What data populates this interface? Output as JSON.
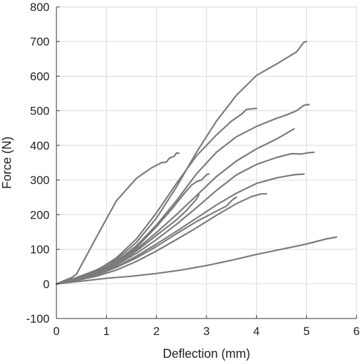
{
  "chart_data": {
    "type": "line",
    "title": "",
    "xlabel": "Deflection (mm)",
    "ylabel": "Force (N)",
    "xlim": [
      0,
      6
    ],
    "ylim": [
      -100,
      800
    ],
    "xticks": [
      0,
      1,
      2,
      3,
      4,
      5,
      6
    ],
    "yticks": [
      -100,
      0,
      100,
      200,
      300,
      400,
      500,
      600,
      700,
      800
    ],
    "grid": true,
    "legend": "none",
    "colors": {
      "line": "#7a7a7a",
      "grid": "#d9d9d9",
      "axis": "#333333"
    },
    "series": [
      {
        "points": [
          [
            0,
            0
          ],
          [
            0.3,
            18
          ],
          [
            0.4,
            28
          ],
          [
            0.8,
            135
          ],
          [
            1.2,
            240
          ],
          [
            1.6,
            305
          ],
          [
            1.9,
            335
          ],
          [
            2.1,
            350
          ],
          [
            2.2,
            352
          ],
          [
            2.25,
            362
          ],
          [
            2.3,
            366
          ],
          [
            2.35,
            368
          ],
          [
            2.4,
            378
          ],
          [
            2.45,
            377
          ]
        ]
      },
      {
        "points": [
          [
            0,
            0
          ],
          [
            0.4,
            18
          ],
          [
            0.8,
            40
          ],
          [
            1.2,
            70
          ],
          [
            1.6,
            120
          ],
          [
            2,
            190
          ],
          [
            2.4,
            280
          ],
          [
            2.8,
            380
          ],
          [
            3.2,
            470
          ],
          [
            3.6,
            545
          ],
          [
            4,
            602
          ],
          [
            4.4,
            635
          ],
          [
            4.8,
            670
          ],
          [
            4.95,
            698
          ],
          [
            5,
            700
          ]
        ]
      },
      {
        "points": [
          [
            0,
            0
          ],
          [
            0.4,
            15
          ],
          [
            0.8,
            38
          ],
          [
            1.2,
            75
          ],
          [
            1.6,
            130
          ],
          [
            2,
            205
          ],
          [
            2.4,
            290
          ],
          [
            2.8,
            370
          ],
          [
            3.2,
            430
          ],
          [
            3.5,
            470
          ],
          [
            3.7,
            490
          ],
          [
            3.8,
            504
          ],
          [
            4,
            507
          ]
        ]
      },
      {
        "points": [
          [
            0,
            0
          ],
          [
            0.4,
            14
          ],
          [
            0.8,
            35
          ],
          [
            1.2,
            65
          ],
          [
            1.6,
            110
          ],
          [
            2,
            170
          ],
          [
            2.4,
            240
          ],
          [
            2.8,
            318
          ],
          [
            3.2,
            380
          ],
          [
            3.6,
            425
          ],
          [
            4,
            455
          ],
          [
            4.4,
            478
          ],
          [
            4.6,
            488
          ],
          [
            4.8,
            500
          ],
          [
            4.95,
            516
          ],
          [
            5.05,
            518
          ]
        ]
      },
      {
        "points": [
          [
            0,
            0
          ],
          [
            0.4,
            14
          ],
          [
            0.8,
            33
          ],
          [
            1.2,
            60
          ],
          [
            1.6,
            100
          ],
          [
            2,
            148
          ],
          [
            2.4,
            200
          ],
          [
            2.8,
            255
          ],
          [
            3.2,
            310
          ],
          [
            3.6,
            355
          ],
          [
            4,
            390
          ],
          [
            4.4,
            418
          ],
          [
            4.6,
            435
          ],
          [
            4.75,
            448
          ]
        ]
      },
      {
        "points": [
          [
            0,
            0
          ],
          [
            0.4,
            12
          ],
          [
            0.8,
            30
          ],
          [
            1.2,
            55
          ],
          [
            1.6,
            88
          ],
          [
            2,
            128
          ],
          [
            2.4,
            172
          ],
          [
            2.8,
            220
          ],
          [
            3.2,
            270
          ],
          [
            3.6,
            315
          ],
          [
            4,
            345
          ],
          [
            4.4,
            365
          ],
          [
            4.7,
            376
          ],
          [
            4.9,
            375
          ],
          [
            5,
            378
          ],
          [
            5.15,
            380
          ]
        ]
      },
      {
        "points": [
          [
            0,
            0
          ],
          [
            0.4,
            12
          ],
          [
            0.8,
            28
          ],
          [
            1.2,
            50
          ],
          [
            1.6,
            80
          ],
          [
            2,
            115
          ],
          [
            2.4,
            152
          ],
          [
            2.8,
            190
          ],
          [
            3.2,
            228
          ],
          [
            3.6,
            262
          ],
          [
            4,
            290
          ],
          [
            4.4,
            306
          ],
          [
            4.7,
            314
          ],
          [
            4.8,
            316
          ],
          [
            4.95,
            317
          ]
        ]
      },
      {
        "points": [
          [
            0,
            0
          ],
          [
            0.4,
            12
          ],
          [
            0.8,
            30
          ],
          [
            1.2,
            60
          ],
          [
            1.6,
            105
          ],
          [
            2,
            165
          ],
          [
            2.3,
            215
          ],
          [
            2.55,
            260
          ],
          [
            2.7,
            285
          ],
          [
            2.8,
            295
          ],
          [
            2.9,
            300
          ],
          [
            3,
            315
          ],
          [
            3.05,
            318
          ]
        ]
      },
      {
        "points": [
          [
            0,
            0
          ],
          [
            0.4,
            12
          ],
          [
            0.8,
            28
          ],
          [
            1.2,
            55
          ],
          [
            1.6,
            95
          ],
          [
            2,
            140
          ],
          [
            2.4,
            185
          ],
          [
            2.6,
            212
          ],
          [
            2.7,
            228
          ],
          [
            2.8,
            245
          ],
          [
            2.85,
            257
          ]
        ]
      },
      {
        "points": [
          [
            0,
            0
          ],
          [
            0.4,
            10
          ],
          [
            0.8,
            25
          ],
          [
            1.2,
            48
          ],
          [
            1.6,
            75
          ],
          [
            2,
            108
          ],
          [
            2.4,
            145
          ],
          [
            2.8,
            180
          ],
          [
            3.2,
            210
          ],
          [
            3.4,
            225
          ],
          [
            3.5,
            240
          ],
          [
            3.55,
            246
          ],
          [
            3.6,
            250
          ]
        ]
      },
      {
        "points": [
          [
            0,
            0
          ],
          [
            0.4,
            10
          ],
          [
            0.8,
            22
          ],
          [
            1.2,
            40
          ],
          [
            1.6,
            65
          ],
          [
            2,
            95
          ],
          [
            2.4,
            128
          ],
          [
            2.8,
            162
          ],
          [
            3.2,
            198
          ],
          [
            3.6,
            232
          ],
          [
            3.9,
            252
          ],
          [
            4.1,
            260
          ],
          [
            4.2,
            260
          ]
        ]
      },
      {
        "points": [
          [
            0,
            0
          ],
          [
            0.5,
            8
          ],
          [
            1,
            16
          ],
          [
            1.5,
            22
          ],
          [
            2,
            30
          ],
          [
            2.5,
            40
          ],
          [
            3,
            53
          ],
          [
            3.5,
            68
          ],
          [
            4,
            85
          ],
          [
            4.5,
            100
          ],
          [
            5,
            115
          ],
          [
            5.4,
            130
          ],
          [
            5.6,
            135
          ]
        ]
      }
    ]
  }
}
